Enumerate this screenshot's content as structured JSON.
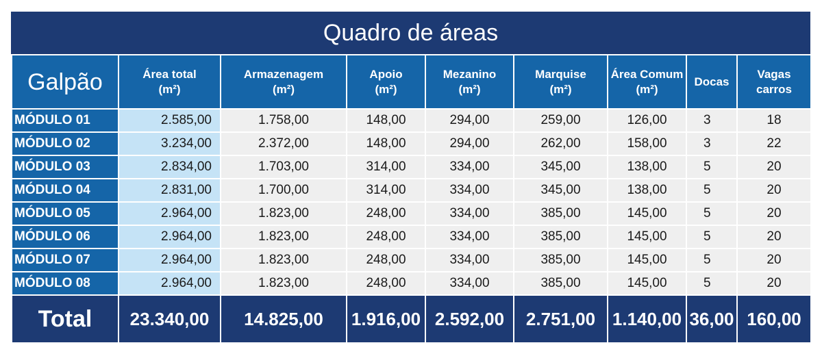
{
  "title": "Quadro de áreas",
  "columns": [
    {
      "label": "Galpão"
    },
    {
      "label": "Área total",
      "unit": "(m²)"
    },
    {
      "label": "Armazenagem",
      "unit": "(m²)"
    },
    {
      "label": "Apoio",
      "unit": "(m²)"
    },
    {
      "label": "Mezanino",
      "unit": "(m²)"
    },
    {
      "label": "Marquise",
      "unit": "(m²)"
    },
    {
      "label": "Área Comum",
      "unit": "(m²)"
    },
    {
      "label": "Docas"
    },
    {
      "label": "Vagas",
      "unit": "carros"
    }
  ],
  "rows": [
    [
      "MÓDULO 01",
      "2.585,00",
      "1.758,00",
      "148,00",
      "294,00",
      "259,00",
      "126,00",
      "3",
      "18"
    ],
    [
      "MÓDULO 02",
      "3.234,00",
      "2.372,00",
      "148,00",
      "294,00",
      "262,00",
      "158,00",
      "3",
      "22"
    ],
    [
      "MÓDULO 03",
      "2.834,00",
      "1.703,00",
      "314,00",
      "334,00",
      "345,00",
      "138,00",
      "5",
      "20"
    ],
    [
      "MÓDULO 04",
      "2.831,00",
      "1.700,00",
      "314,00",
      "334,00",
      "345,00",
      "138,00",
      "5",
      "20"
    ],
    [
      "MÓDULO 05",
      "2.964,00",
      "1.823,00",
      "248,00",
      "334,00",
      "385,00",
      "145,00",
      "5",
      "20"
    ],
    [
      "MÓDULO 06",
      "2.964,00",
      "1.823,00",
      "248,00",
      "334,00",
      "385,00",
      "145,00",
      "5",
      "20"
    ],
    [
      "MÓDULO 07",
      "2.964,00",
      "1.823,00",
      "248,00",
      "334,00",
      "385,00",
      "145,00",
      "5",
      "20"
    ],
    [
      "MÓDULO 08",
      "2.964,00",
      "1.823,00",
      "248,00",
      "334,00",
      "385,00",
      "145,00",
      "5",
      "20"
    ]
  ],
  "total": [
    "Total",
    "23.340,00",
    "14.825,00",
    "1.916,00",
    "2.592,00",
    "2.751,00",
    "1.140,00",
    "36,00",
    "160,00"
  ],
  "colors": {
    "title_bg": "#1d3a73",
    "header_bg": "#1565a8",
    "area_total_bg": "#c5e3f6",
    "cell_bg": "#efefef"
  }
}
